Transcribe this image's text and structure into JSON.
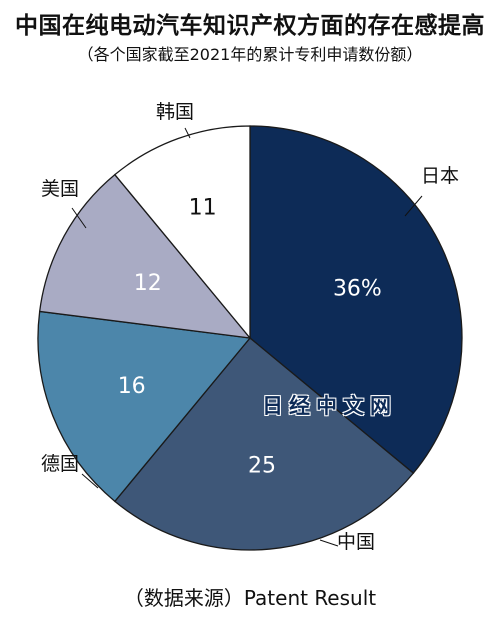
{
  "chart_data": {
    "type": "pie",
    "title": "中国在纯电动汽车知识产权方面的存在感提高",
    "subtitle": "（各个国家截至2021年的累计专利申请数份额）",
    "slices": [
      {
        "name": "日本",
        "value": 36,
        "value_label": "36%",
        "color": "#0d2b57",
        "label_color": "#ffffff"
      },
      {
        "name": "中国",
        "value": 25,
        "value_label": "25",
        "color": "#3e5778",
        "label_color": "#ffffff"
      },
      {
        "name": "德国",
        "value": 16,
        "value_label": "16",
        "color": "#4c86aa",
        "label_color": "#ffffff"
      },
      {
        "name": "美国",
        "value": 12,
        "value_label": "12",
        "color": "#a9abc4",
        "label_color": "#ffffff"
      },
      {
        "name": "韩国",
        "value": 11,
        "value_label": "11",
        "color": "#ffffff",
        "label_color": "#111111"
      }
    ],
    "source": "（数据来源）Patent Result"
  },
  "watermark": "日经中文网"
}
